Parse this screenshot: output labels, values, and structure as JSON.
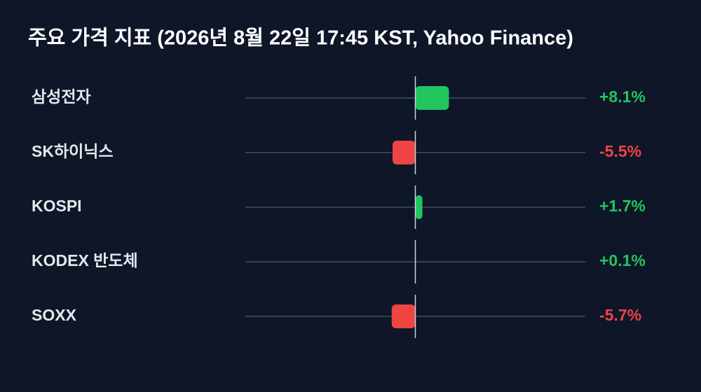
{
  "chart_data": {
    "type": "bar",
    "orientation": "horizontal",
    "title": "주요 가격 지표 (2026년 8월 22일 17:45 KST, Yahoo Finance)",
    "categories": [
      "삼성전자",
      "SK하이닉스",
      "KOSPI",
      "KODEX 반도체",
      "SOXX"
    ],
    "values": [
      8.1,
      -5.5,
      1.7,
      0.1,
      -5.7
    ],
    "value_labels": [
      "+8.1%",
      "-5.5%",
      "+1.7%",
      "+0.1%",
      "-5.7%"
    ],
    "positive_color": "#22c55e",
    "negative_color": "#ef4444",
    "xlim": [
      -41,
      41
    ]
  }
}
